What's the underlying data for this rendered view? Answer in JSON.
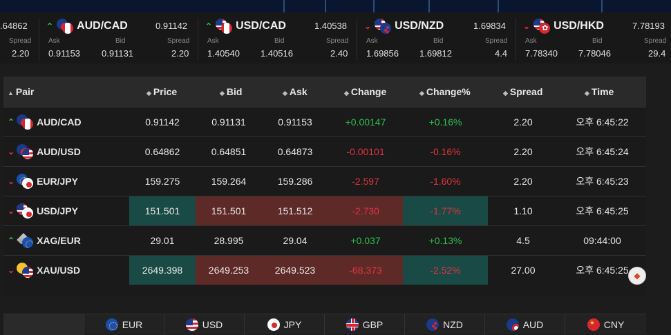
{
  "ticker": [
    {
      "sym": "",
      "price": "",
      "ask": "",
      "bid": "",
      "spread_label": "Spread",
      "ask_value": "",
      "bid_value": "",
      "spread_value": "2.20",
      "partial_price": ".64862",
      "dir": "down"
    },
    {
      "sym": "AUD/CAD",
      "price": "0.91142",
      "ask_label": "Ask",
      "bid_label": "Bid",
      "spread_label": "Spread",
      "ask_value": "0.91153",
      "bid_value": "0.91131",
      "spread_value": "2.20",
      "dir": "up",
      "flag1": "au",
      "flag2": "ca"
    },
    {
      "sym": "USD/CAD",
      "price": "1.40538",
      "ask_label": "Ask",
      "bid_label": "Bid",
      "spread_label": "Spread",
      "ask_value": "1.40540",
      "bid_value": "1.40516",
      "spread_value": "2.40",
      "dir": "up",
      "flag1": "us",
      "flag2": "ca"
    },
    {
      "sym": "USD/NZD",
      "price": "1.69834",
      "ask_label": "Ask",
      "bid_label": "Bid",
      "spread_label": "Spread",
      "ask_value": "1.69856",
      "bid_value": "1.69812",
      "spread_value": "4.4",
      "dir": "down",
      "flag1": "us",
      "flag2": "nz"
    },
    {
      "sym": "USD/HKD",
      "price": "7.78193",
      "ask_label": "Ask",
      "bid_label": "Bid",
      "spread_label": "Spread",
      "ask_value": "7.78340",
      "bid_value": "7.78046",
      "spread_value": "29.4",
      "dir": "down",
      "flag1": "us",
      "flag2": "hk"
    }
  ],
  "table": {
    "headers": {
      "pair": "Pair",
      "price": "Price",
      "bid": "Bid",
      "ask": "Ask",
      "change": "Change",
      "changepct": "Change%",
      "spread": "Spread",
      "time": "Time"
    },
    "rows": [
      {
        "pair": "AUD/CAD",
        "price": "0.91142",
        "bid": "0.91131",
        "ask": "0.91153",
        "change": "+0.00147",
        "changepct": "+0.16%",
        "spread": "2.20",
        "time": "오후 6:45:22",
        "dir": "up"
      },
      {
        "pair": "AUD/USD",
        "price": "0.64862",
        "bid": "0.64851",
        "ask": "0.64873",
        "change": "-0.00101",
        "changepct": "-0.16%",
        "spread": "2.20",
        "time": "오후 6:45:24",
        "dir": "down"
      },
      {
        "pair": "EUR/JPY",
        "price": "159.275",
        "bid": "159.264",
        "ask": "159.286",
        "change": "-2.597",
        "changepct": "-1.60%",
        "spread": "2.20",
        "time": "오후 6:45:23",
        "dir": "down"
      },
      {
        "pair": "USD/JPY",
        "price": "151.501",
        "bid": "151.501",
        "ask": "151.512",
        "change": "-2.730",
        "changepct": "-1.77%",
        "spread": "1.10",
        "time": "오후 6:45:25",
        "dir": "down"
      },
      {
        "pair": "XAG/EUR",
        "price": "29.01",
        "bid": "28.995",
        "ask": "29.04",
        "change": "+0.037",
        "changepct": "+0.13%",
        "spread": "4.5",
        "time": "09:44:00",
        "dir": "up"
      },
      {
        "pair": "XAU/USD",
        "price": "2649.398",
        "bid": "2649.253",
        "ask": "2649.523",
        "change": "-68.373",
        "changepct": "-2.52%",
        "spread": "27.00",
        "time": "오후 6:45:25",
        "dir": "down"
      }
    ]
  },
  "currencies": [
    "EUR",
    "USD",
    "JPY",
    "GBP",
    "NZD",
    "AUD",
    "CNY"
  ],
  "icons": {
    "sort": "sort-arrows-icon",
    "up": "arrow-up-icon",
    "down": "arrow-down-icon"
  },
  "colors": {
    "positive": "#2fbf4f",
    "negative": "#e0343f",
    "highlight_green": "#1a4a45",
    "highlight_red": "#5e2a28"
  }
}
